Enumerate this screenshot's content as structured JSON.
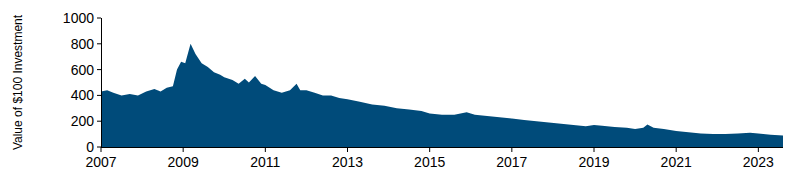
{
  "chart_data": {
    "type": "area",
    "y_label": "Value of $100 Investment",
    "color": "#004b7a",
    "x": [
      2007.0,
      2007.15,
      2007.3,
      2007.5,
      2007.7,
      2007.9,
      2008.1,
      2008.3,
      2008.45,
      2008.6,
      2008.75,
      2008.85,
      2008.95,
      2009.05,
      2009.18,
      2009.3,
      2009.45,
      2009.6,
      2009.75,
      2009.9,
      2010.0,
      2010.2,
      2010.35,
      2010.5,
      2010.6,
      2010.75,
      2010.9,
      2011.0,
      2011.2,
      2011.4,
      2011.6,
      2011.76,
      2011.85,
      2012.0,
      2012.2,
      2012.4,
      2012.6,
      2012.8,
      2013.0,
      2013.3,
      2013.6,
      2013.9,
      2014.2,
      2014.5,
      2014.8,
      2015.0,
      2015.3,
      2015.6,
      2015.9,
      2016.1,
      2016.4,
      2016.7,
      2017.0,
      2017.3,
      2017.6,
      2017.9,
      2018.2,
      2018.5,
      2018.8,
      2019.0,
      2019.2,
      2019.5,
      2019.8,
      2020.0,
      2020.2,
      2020.3,
      2020.45,
      2020.7,
      2021.0,
      2021.3,
      2021.6,
      2021.9,
      2022.2,
      2022.5,
      2022.8,
      2023.0,
      2023.3,
      2023.6
    ],
    "values": [
      430,
      440,
      420,
      400,
      410,
      400,
      430,
      450,
      430,
      460,
      470,
      600,
      660,
      650,
      800,
      720,
      650,
      620,
      580,
      560,
      540,
      520,
      490,
      530,
      500,
      550,
      490,
      480,
      440,
      420,
      440,
      490,
      440,
      440,
      420,
      400,
      400,
      380,
      370,
      350,
      330,
      320,
      300,
      290,
      280,
      260,
      250,
      250,
      270,
      250,
      240,
      230,
      220,
      210,
      200,
      190,
      180,
      170,
      160,
      170,
      165,
      155,
      150,
      140,
      150,
      175,
      150,
      140,
      125,
      115,
      105,
      100,
      100,
      105,
      110,
      105,
      95,
      90
    ],
    "xlim": [
      2007,
      2023.6
    ],
    "xticks": [
      2007,
      2009,
      2011,
      2013,
      2015,
      2017,
      2019,
      2021,
      2023
    ],
    "ylim": [
      0,
      1000
    ],
    "yticks": [
      0,
      200,
      400,
      600,
      800,
      1000
    ],
    "grid": false
  }
}
